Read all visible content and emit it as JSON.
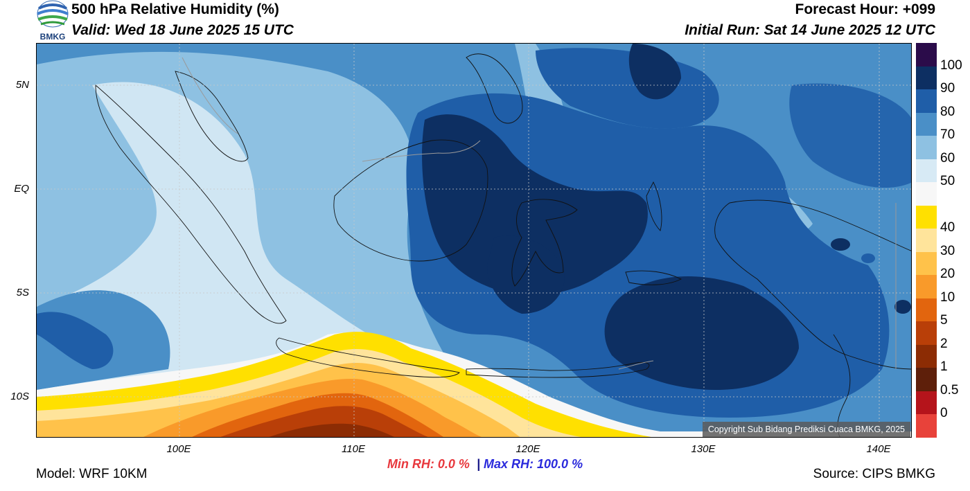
{
  "header": {
    "title": "500 hPa Relative Humidity (%)",
    "valid": "Valid: Wed 18 June 2025 15 UTC",
    "forecast_hour": "Forecast Hour: +099",
    "initial_run": "Initial Run: Sat 14 June 2025 12 UTC",
    "logo_text": "BMKG"
  },
  "map": {
    "lat_labels": [
      "5N",
      "EQ",
      "5S",
      "10S"
    ],
    "lon_labels": [
      "100E",
      "110E",
      "120E",
      "130E",
      "140E"
    ],
    "copyright": "Copyright Sub Bidang Prediksi Cuaca BMKG, 2025"
  },
  "colorbar": {
    "labels": [
      "100",
      "90",
      "80",
      "70",
      "60",
      "50",
      "40",
      "30",
      "20",
      "10",
      "5",
      "2",
      "1",
      "0.5",
      "0"
    ],
    "colors": [
      "#2b0c4a",
      "#0d2f62",
      "#1f5ea8",
      "#4a8fc7",
      "#8ec1e2",
      "#d7eaf5",
      "#f7f7f7",
      "#ffe000",
      "#ffe49b",
      "#ffc24a",
      "#f99a2a",
      "#e2650e",
      "#b93f08",
      "#8c2c04",
      "#5e1f0a",
      "#b5141b",
      "#e8423a"
    ]
  },
  "footer": {
    "min_rh": "Min RH:   0.0 %",
    "separator": "|",
    "max_rh": "Max RH: 100.0 %",
    "model": "Model: WRF 10KM",
    "source": "Source: CIPS BMKG"
  }
}
